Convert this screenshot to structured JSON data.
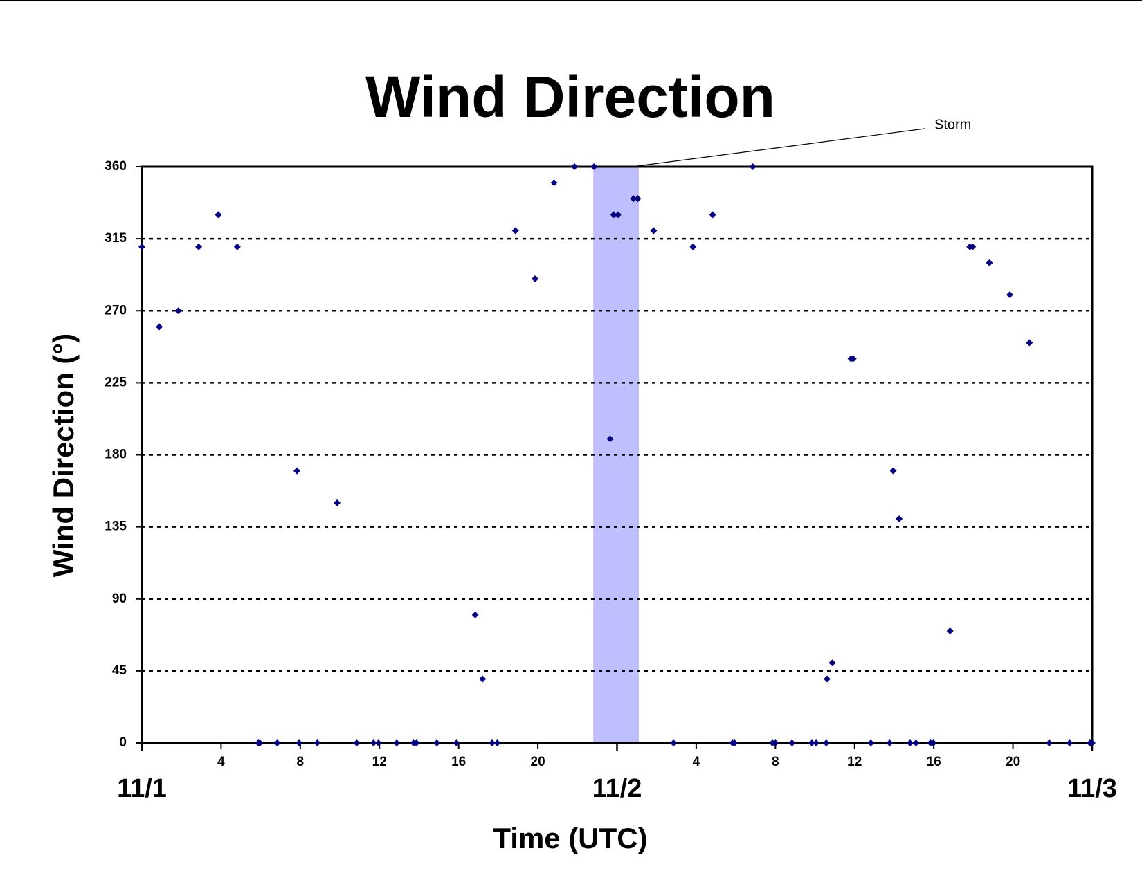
{
  "chart_data": {
    "type": "scatter",
    "title": "Wind Direction",
    "x_label": "Time (UTC)",
    "y_label": "Wind Direction (°)",
    "xlim": [
      0,
      48
    ],
    "ylim": [
      0,
      360
    ],
    "xticks": [
      4,
      8,
      12,
      16,
      20,
      {
        "value": 28,
        "label": "4"
      },
      {
        "value": 32,
        "label": "8"
      },
      {
        "value": 36,
        "label": "12"
      },
      {
        "value": 40,
        "label": "16"
      },
      {
        "value": 44,
        "label": "20"
      }
    ],
    "date_ticks": [
      {
        "value": 0,
        "label": "11/1"
      },
      {
        "value": 24,
        "label": "11/2"
      },
      {
        "value": 48,
        "label": "11/3"
      }
    ],
    "yticks": [
      0,
      45,
      90,
      135,
      180,
      225,
      270,
      315,
      360
    ],
    "grid": true,
    "storm": {
      "range": [
        22.8,
        25.1
      ],
      "label": "Storm",
      "color": "#bfbfff"
    },
    "series": [
      {
        "color": "#000080",
        "x": [
          0,
          0.88,
          1.84,
          2.87,
          3.86,
          4.82,
          5.88,
          5.96,
          6.84,
          7.83,
          7.94,
          8.86,
          9.86,
          10.85,
          11.7,
          11.95,
          12.87,
          13.72,
          13.87,
          14.9,
          15.89,
          16.84,
          17.21,
          17.69,
          17.95,
          18.87,
          19.86,
          20.82,
          21.85,
          22.84,
          23.65,
          23.83,
          24.05,
          24.83,
          25.05,
          25.85,
          26.85,
          27.84,
          28.83,
          29.83,
          29.94,
          30.86,
          31.85,
          32.0,
          32.84,
          33.84,
          34.06,
          34.57,
          34.61,
          34.87,
          35.82,
          35.93,
          36.82,
          37.77,
          37.95,
          38.25,
          38.8,
          39.1,
          39.83,
          39.98,
          40.82,
          41.82,
          41.96,
          42.81,
          43.84,
          44.83,
          45.83,
          46.86,
          47.89,
          48.0
        ],
        "values": [
          310,
          260,
          270,
          310,
          330,
          310,
          0,
          0,
          0,
          170,
          0,
          0,
          150,
          0,
          0,
          0,
          0,
          0,
          0,
          0,
          0,
          80,
          40,
          0,
          0,
          320,
          290,
          350,
          360,
          360,
          190,
          330,
          330,
          340,
          340,
          320,
          0,
          310,
          330,
          0,
          0,
          360,
          0,
          0,
          0,
          0,
          0,
          0,
          40,
          50,
          240,
          240,
          0,
          0,
          170,
          140,
          0,
          0,
          0,
          0,
          70,
          310,
          310,
          300,
          280,
          250,
          0,
          0,
          0,
          0
        ]
      }
    ]
  }
}
